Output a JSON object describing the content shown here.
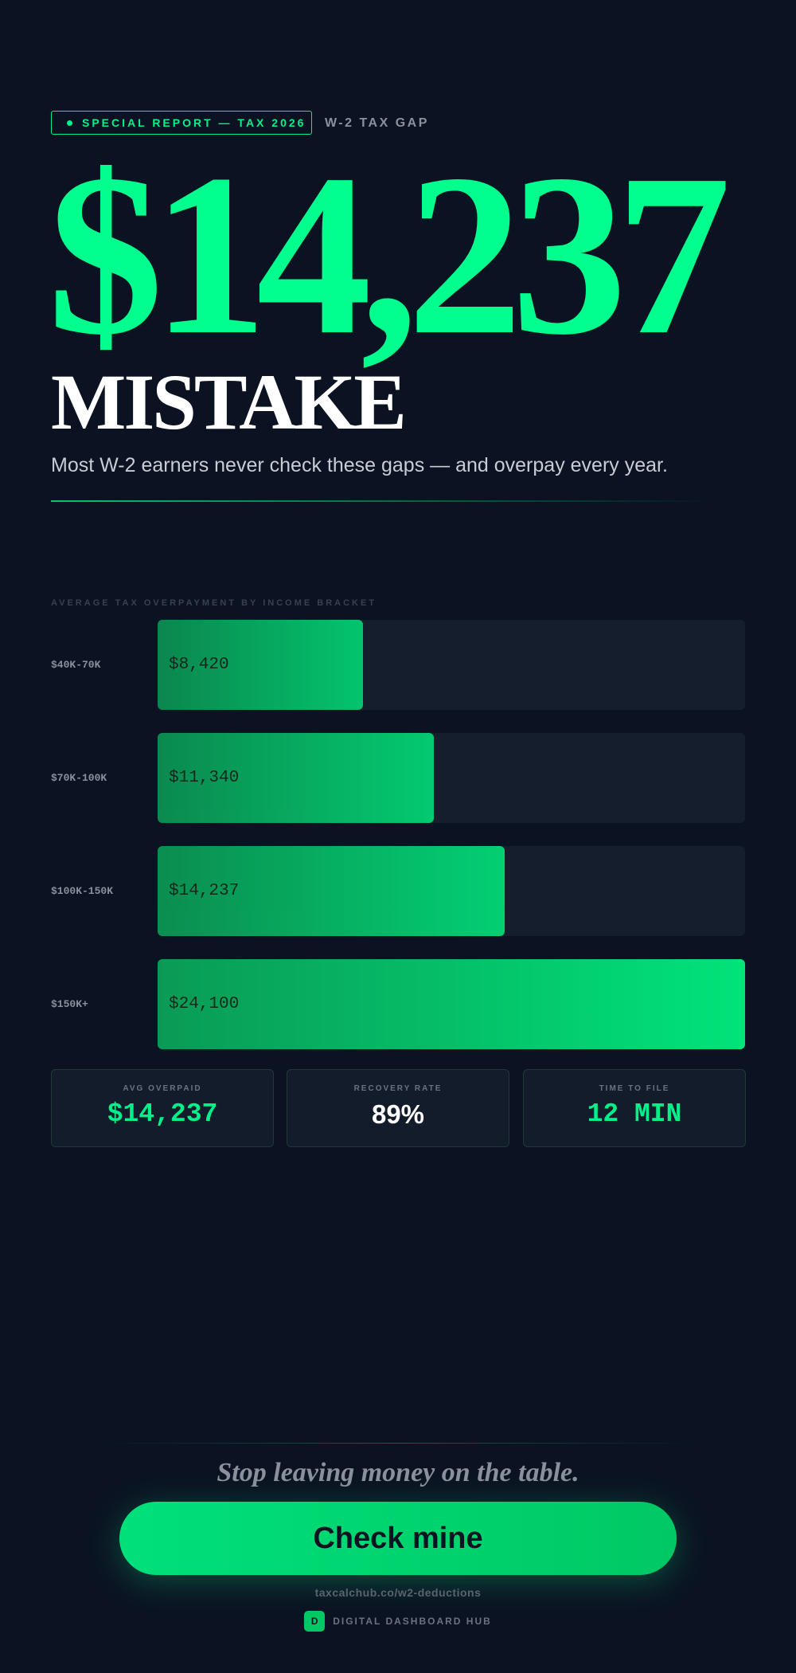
{
  "header": {
    "badge": "SPECIAL REPORT — TAX 2026",
    "tag": "W-2 TAX GAP"
  },
  "hero": {
    "amount": "$14,237",
    "word": "MISTAKE",
    "subtitle": "Most W-2 earners never check these gaps — and overpay every year."
  },
  "chart_data": {
    "type": "bar",
    "orientation": "horizontal",
    "title": "AVERAGE TAX OVERPAYMENT BY INCOME BRACKET",
    "categories": [
      "$40K-70K",
      "$70K-100K",
      "$100K-150K",
      "$150K+"
    ],
    "values": [
      8420,
      11340,
      14237,
      24100
    ],
    "value_labels": [
      "$8,420",
      "$11,340",
      "$14,237",
      "$24,100"
    ],
    "color": "#00e47a"
  },
  "stats": [
    {
      "label": "AVG OVERPAID",
      "value": "$14,237"
    },
    {
      "label": "RECOVERY RATE",
      "value": "89%"
    },
    {
      "label": "TIME TO FILE",
      "value": "12 MIN"
    }
  ],
  "cta": {
    "tagline": "Stop leaving money on the table.",
    "button": "Check mine",
    "url": "taxcalchub.co/w2-deductions",
    "brand_icon": "D",
    "brand": "DIGITAL DASHBOARD HUB"
  }
}
